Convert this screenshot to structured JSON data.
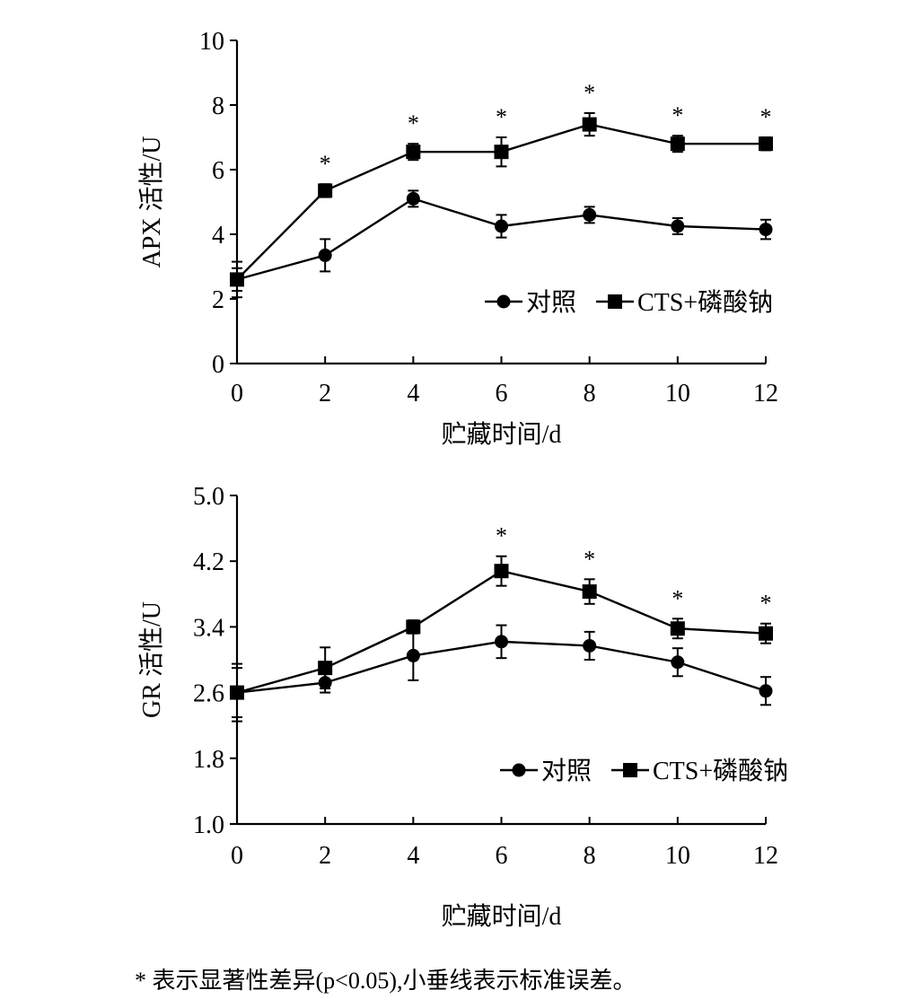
{
  "chart_data": [
    {
      "type": "line",
      "ylabel": "APX 活性/U",
      "xlabel": "贮藏时间/d",
      "x": [
        0,
        2,
        4,
        6,
        8,
        10,
        12
      ],
      "xticks": [
        "0",
        "2",
        "4",
        "6",
        "8",
        "10",
        "12"
      ],
      "xlim": [
        0,
        12
      ],
      "ylim": [
        0,
        10
      ],
      "yticks": [
        "0",
        "2",
        "4",
        "6",
        "8",
        "10"
      ],
      "legend_position": "lower-right",
      "grid": false,
      "series": [
        {
          "name": "对照",
          "marker": "circle",
          "values": [
            2.6,
            3.35,
            5.1,
            4.25,
            4.6,
            4.25,
            4.15
          ],
          "errors": [
            0.55,
            0.5,
            0.25,
            0.35,
            0.25,
            0.25,
            0.3
          ]
        },
        {
          "name": "CTS+磷酸钠",
          "marker": "square",
          "values": [
            2.6,
            5.35,
            6.55,
            6.55,
            7.4,
            6.8,
            6.8
          ],
          "errors": [
            0.35,
            0.2,
            0.25,
            0.45,
            0.35,
            0.25,
            0.2
          ]
        }
      ],
      "significance": [
        "",
        "*",
        "*",
        "*",
        "*",
        "*",
        "*"
      ],
      "significance_mark": "*"
    },
    {
      "type": "line",
      "ylabel": "GR 活性/U",
      "xlabel": "贮藏时间/d",
      "x": [
        0,
        2,
        4,
        6,
        8,
        10,
        12
      ],
      "xticks": [
        "0",
        "2",
        "4",
        "6",
        "8",
        "10",
        "12"
      ],
      "xlim": [
        0,
        12
      ],
      "ylim": [
        1.0,
        5.0
      ],
      "yticks": [
        "1.0",
        "1.8",
        "2.6",
        "3.4",
        "4.2",
        "5.0"
      ],
      "legend_position": "lower-right",
      "grid": false,
      "series": [
        {
          "name": "对照",
          "marker": "circle",
          "values": [
            2.6,
            2.72,
            3.05,
            3.22,
            3.17,
            2.97,
            2.62
          ],
          "errors": [
            0.3,
            0.12,
            0.3,
            0.2,
            0.17,
            0.17,
            0.17
          ]
        },
        {
          "name": "CTS+磷酸钠",
          "marker": "square",
          "values": [
            2.6,
            2.9,
            3.4,
            4.08,
            3.83,
            3.38,
            3.32
          ],
          "errors": [
            0.35,
            0.25,
            0.08,
            0.18,
            0.15,
            0.12,
            0.12
          ]
        }
      ],
      "significance": [
        "",
        "",
        "",
        "*",
        "*",
        "*",
        "*"
      ],
      "significance_mark": "*"
    }
  ],
  "footnote": "* 表示显著性差异(p<0.05),小垂线表示标准误差。"
}
